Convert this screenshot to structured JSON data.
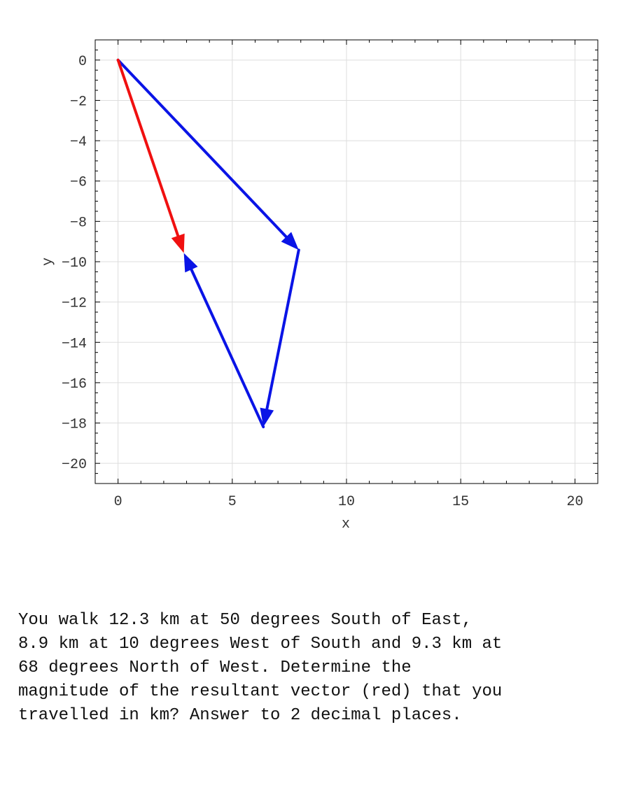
{
  "chart_data": {
    "type": "vector-diagram",
    "title": "",
    "xlabel": "x",
    "ylabel": "y",
    "xlim": [
      -1,
      21
    ],
    "ylim": [
      -21,
      1
    ],
    "xticks": [
      0,
      5,
      10,
      15,
      20
    ],
    "yticks": [
      0,
      -2,
      -4,
      -6,
      -8,
      -10,
      -12,
      -14,
      -16,
      -18,
      -20
    ],
    "grid": true,
    "vectors": [
      {
        "from": [
          0,
          0
        ],
        "to": [
          7.91,
          -9.42
        ],
        "color": "#0a14e6"
      },
      {
        "from": [
          7.91,
          -9.42
        ],
        "to": [
          6.36,
          -18.19
        ],
        "color": "#0a14e6"
      },
      {
        "from": [
          6.36,
          -18.19
        ],
        "to": [
          2.88,
          -9.57
        ],
        "color": "#0a14e6"
      },
      {
        "from": [
          0,
          0
        ],
        "to": [
          2.88,
          -9.57
        ],
        "color": "#f01010"
      }
    ]
  },
  "question": {
    "text": "You walk 12.3 km at 50 degrees South of East,\n8.9 km at 10 degrees West of South and 9.3 km at\n68 degrees North of West.  Determine the\nmagnitude of the resultant vector (red) that you\ntravelled in km? Answer to 2 decimal places."
  }
}
